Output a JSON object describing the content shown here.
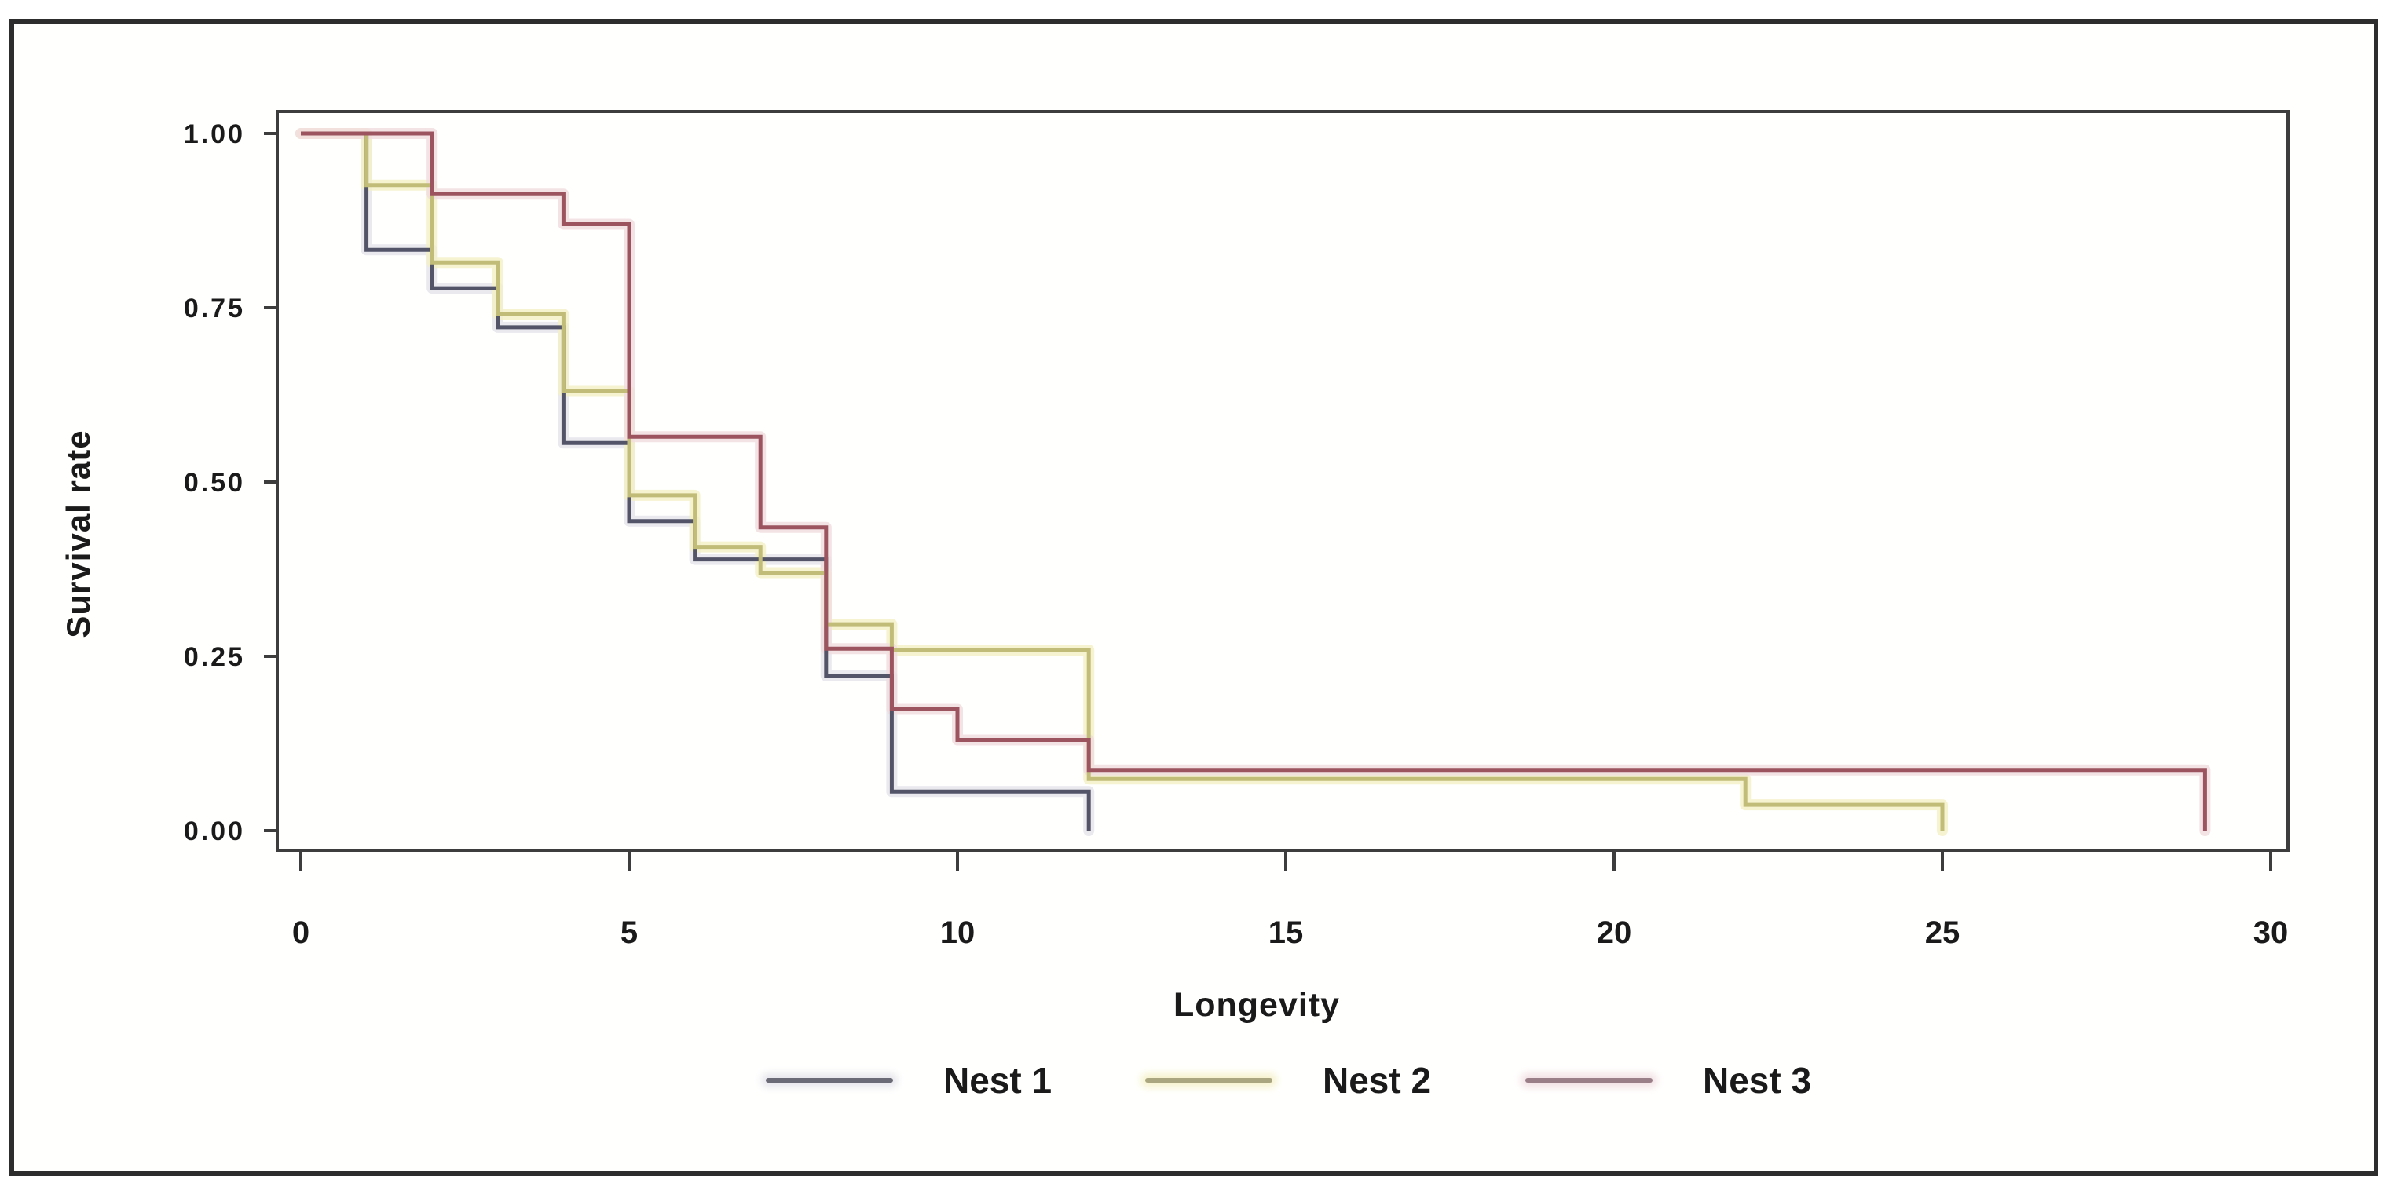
{
  "figure": {
    "background": "#ffffff",
    "outer_border_color": "#2d2d2d",
    "plot_border_color": "#3d3d3d",
    "text_color": "#1a1a1a"
  },
  "axes": {
    "y_title": "Survival rate",
    "x_title": "Longevity",
    "y_ticks": [
      "1.00",
      "0.75",
      "0.50",
      "0.25",
      "0.00"
    ],
    "y_tick_values": [
      1.0,
      0.75,
      0.5,
      0.25,
      0.0
    ],
    "x_ticks": [
      "0",
      "5",
      "10",
      "15",
      "20",
      "25",
      "30"
    ],
    "x_tick_values": [
      0,
      5,
      10,
      15,
      20,
      25,
      30
    ]
  },
  "legend": {
    "items": [
      {
        "label": "Nest 1",
        "swatch_color": "#6b6b77",
        "halo": "#e6e6ec"
      },
      {
        "label": "Nest 2",
        "swatch_color": "#aaa67f",
        "halo": "#f6f2cc"
      },
      {
        "label": "Nest 3",
        "swatch_color": "#9a7f88",
        "halo": "#f2e0e4"
      }
    ]
  },
  "chart_data": {
    "type": "line",
    "subtype": "kaplan-meier-step",
    "title": "",
    "xlabel": "Longevity",
    "ylabel": "Survival rate",
    "xlim": [
      0,
      30
    ],
    "ylim": [
      0.0,
      1.0
    ],
    "grid": false,
    "legend_position": "bottom-center",
    "series": [
      {
        "name": "Nest 1",
        "color": "#535468",
        "halo": "#e3e3ea",
        "points": [
          [
            0,
            1.0
          ],
          [
            1,
            0.833
          ],
          [
            2,
            0.778
          ],
          [
            3,
            0.722
          ],
          [
            4,
            0.556
          ],
          [
            5,
            0.444
          ],
          [
            6,
            0.389
          ],
          [
            8,
            0.222
          ],
          [
            9,
            0.056
          ],
          [
            12,
            0.0
          ]
        ]
      },
      {
        "name": "Nest 2",
        "color": "#c2bc79",
        "halo": "#f4f0c6",
        "points": [
          [
            0,
            1.0
          ],
          [
            1,
            0.926
          ],
          [
            2,
            0.815
          ],
          [
            3,
            0.741
          ],
          [
            4,
            0.63
          ],
          [
            5,
            0.481
          ],
          [
            6,
            0.407
          ],
          [
            7,
            0.37
          ],
          [
            8,
            0.296
          ],
          [
            9,
            0.259
          ],
          [
            12,
            0.074
          ],
          [
            22,
            0.037
          ],
          [
            25,
            0.0
          ]
        ]
      },
      {
        "name": "Nest 3",
        "color": "#9c545f",
        "halo": "#f0dcdf",
        "points": [
          [
            0,
            1.0
          ],
          [
            2,
            0.913
          ],
          [
            4,
            0.87
          ],
          [
            5,
            0.565
          ],
          [
            7,
            0.435
          ],
          [
            8,
            0.261
          ],
          [
            9,
            0.174
          ],
          [
            10,
            0.13
          ],
          [
            12,
            0.087
          ],
          [
            29,
            0.0
          ]
        ]
      }
    ]
  }
}
